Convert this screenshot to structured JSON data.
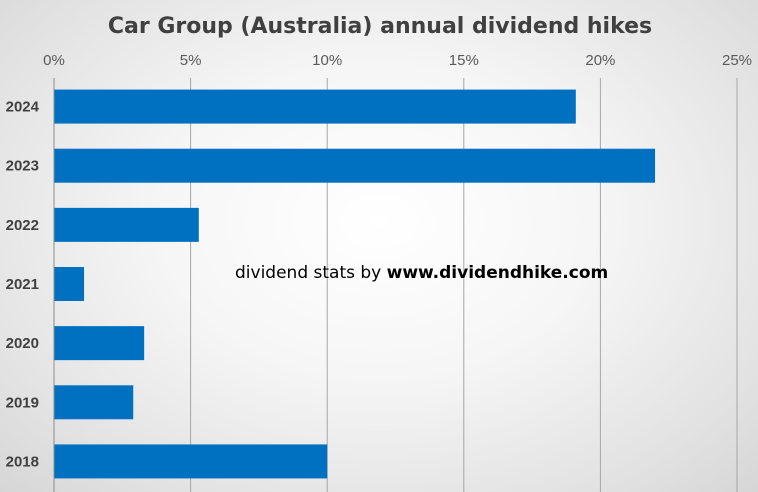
{
  "chart_data": {
    "type": "bar",
    "orientation": "horizontal",
    "title": "Car Group (Australia) annual dividend hikes",
    "categories": [
      "2024",
      "2023",
      "2022",
      "2021",
      "2020",
      "2019",
      "2018"
    ],
    "series": [
      {
        "values": [
          19.1,
          22.0,
          5.3,
          1.1,
          3.3,
          2.9,
          10.0
        ]
      }
    ],
    "x_ticks": [
      "0%",
      "5%",
      "10%",
      "15%",
      "20%",
      "25%"
    ],
    "xlim": [
      0,
      25
    ],
    "x_axis_position": "top",
    "grid": true,
    "bar_color": "#0070C0",
    "annotation": {
      "prefix": "dividend stats by ",
      "site": "www.dividendhike.com"
    }
  }
}
